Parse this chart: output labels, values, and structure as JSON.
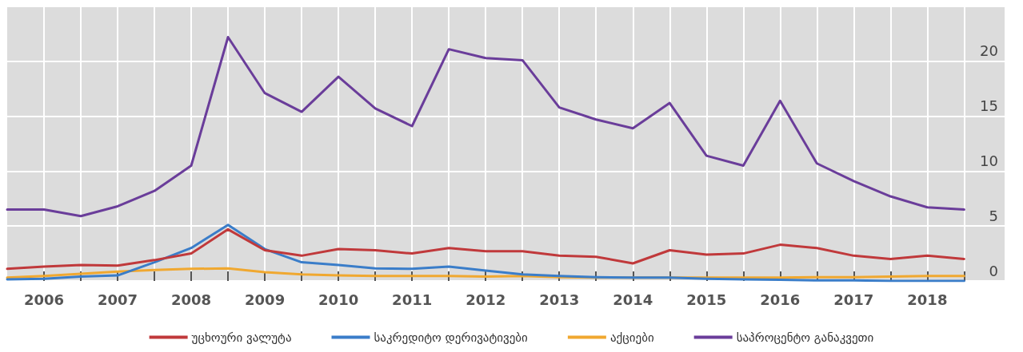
{
  "chart_data": {
    "type": "line",
    "x": [
      2005.5,
      2006,
      2006.5,
      2007,
      2007.5,
      2008,
      2008.5,
      2009,
      2009.5,
      2010,
      2010.5,
      2011,
      2011.5,
      2012,
      2012.5,
      2013,
      2013.5,
      2014,
      2014.5,
      2015,
      2015.5,
      2016,
      2016.5,
      2017,
      2017.5,
      2018,
      2018.5
    ],
    "series": [
      {
        "name": "უცხოური ვალუტა",
        "color": "#c0393b",
        "values": [
          1.1,
          1.3,
          1.45,
          1.4,
          1.9,
          2.5,
          4.7,
          2.8,
          2.3,
          2.9,
          2.8,
          2.5,
          3.0,
          2.7,
          2.7,
          2.3,
          2.2,
          1.6,
          2.8,
          2.4,
          2.5,
          3.3,
          3.0,
          2.3,
          2.0,
          2.3,
          2.0
        ]
      },
      {
        "name": "საკრედიტო დერივატივები",
        "color": "#3a7dc9",
        "values": [
          0.15,
          0.2,
          0.4,
          0.5,
          1.7,
          3.0,
          5.1,
          2.9,
          1.7,
          1.45,
          1.15,
          1.1,
          1.3,
          0.95,
          0.6,
          0.45,
          0.35,
          0.3,
          0.3,
          0.2,
          0.15,
          0.1,
          0.05,
          0.05,
          0,
          0,
          0
        ]
      },
      {
        "name": "აქციები",
        "color": "#f0a830",
        "values": [
          0.3,
          0.45,
          0.65,
          0.85,
          1.0,
          1.1,
          1.15,
          0.8,
          0.6,
          0.5,
          0.45,
          0.45,
          0.45,
          0.4,
          0.45,
          0.35,
          0.3,
          0.3,
          0.3,
          0.3,
          0.3,
          0.3,
          0.35,
          0.35,
          0.4,
          0.45,
          0.45
        ]
      },
      {
        "name": "საპროცენტო განაკვეთი",
        "color": "#6a3d9a",
        "values": [
          6.5,
          6.5,
          5.9,
          6.8,
          8.2,
          10.5,
          22.2,
          17.1,
          15.4,
          18.6,
          15.7,
          14.1,
          21.1,
          20.3,
          20.1,
          15.8,
          14.7,
          13.9,
          16.2,
          11.4,
          10.5,
          16.4,
          10.7,
          9.1,
          7.7,
          6.7,
          6.5
        ]
      }
    ],
    "xlim": [
      2005.5,
      2019.05
    ],
    "xticks": [
      2006,
      {
        "value": 2006.5,
        "label": null
      },
      2007,
      {
        "value": 2007.5,
        "label": null
      },
      2008,
      {
        "value": 2008.5,
        "label": null
      },
      2009,
      {
        "value": 2009.5,
        "label": null
      },
      2010,
      {
        "value": 2010.5,
        "label": null
      },
      2011,
      {
        "value": 2011.5,
        "label": null
      },
      2012,
      {
        "value": 2012.5,
        "label": null
      },
      2013,
      {
        "value": 2013.5,
        "label": null
      },
      2014,
      {
        "value": 2014.5,
        "label": null
      },
      2015,
      {
        "value": 2015.5,
        "label": null
      },
      2016,
      {
        "value": 2016.5,
        "label": null
      },
      2017,
      {
        "value": 2017.5,
        "label": null
      },
      2018,
      {
        "value": 2018.5,
        "label": null
      }
    ],
    "ylim": [
      0,
      25
    ],
    "yticks": [
      0,
      5,
      10,
      15,
      20
    ],
    "grid": true,
    "legend": "bottom",
    "marker": "none",
    "line_style": "solid"
  }
}
